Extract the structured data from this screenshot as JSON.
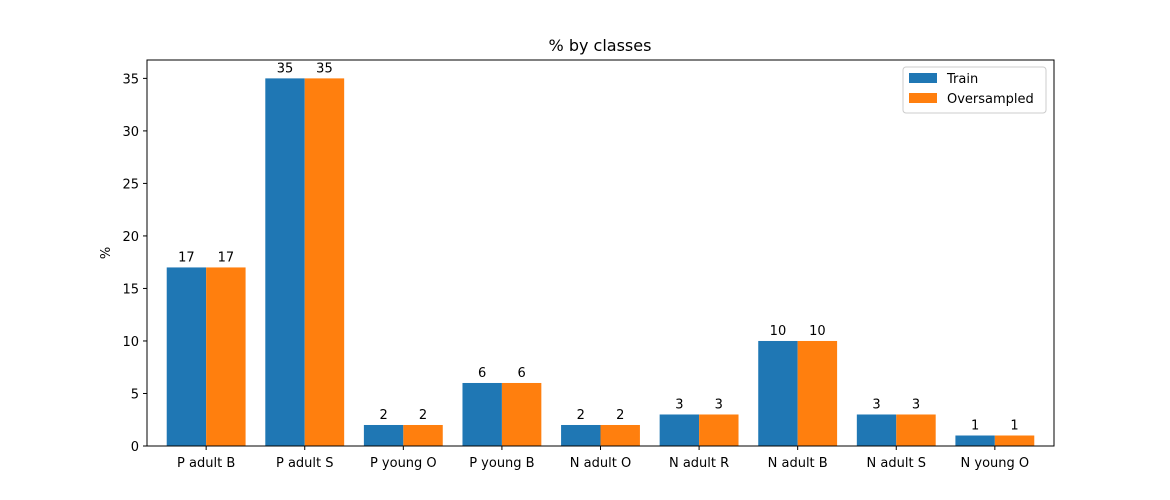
{
  "chart_data": {
    "type": "bar",
    "title": "% by classes",
    "xlabel": "",
    "ylabel": "%",
    "ylim": [
      0,
      36.75
    ],
    "yticks": [
      0,
      5,
      10,
      15,
      20,
      25,
      30,
      35
    ],
    "grid": false,
    "legend_position": "top-right",
    "categories": [
      "P adult B",
      "P adult S",
      "P young O",
      "P young B",
      "N adult O",
      "N adult R",
      "N adult B",
      "N adult S",
      "N young O"
    ],
    "series": [
      {
        "name": "Train",
        "color": "#1f77b4",
        "values": [
          17,
          35,
          2,
          6,
          2,
          3,
          10,
          3,
          1
        ]
      },
      {
        "name": "Oversampled",
        "color": "#ff7f0e",
        "values": [
          17,
          35,
          2,
          6,
          2,
          3,
          10,
          3,
          1
        ]
      }
    ]
  }
}
